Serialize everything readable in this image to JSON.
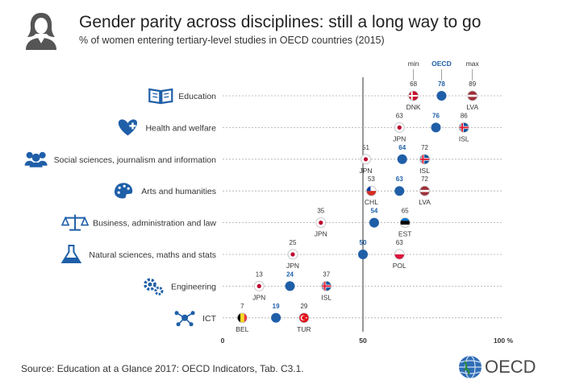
{
  "header": {
    "title": "Gender parity across disciplines: still a long way to go",
    "subtitle": "% of women entering tertiary-level studies in OECD countries (2015)",
    "icon": "woman-avatar-icon"
  },
  "source": "Source: Education at a Glance 2017: OECD Indicators, Tab. C3.1.",
  "logo": {
    "text": "OECD",
    "icon": "globe-icon"
  },
  "colors": {
    "oecd_dot": "#1f5fa8",
    "text": "#333333",
    "axis": "#333333",
    "dotted": "#aaaaaa"
  },
  "chart_data": {
    "type": "scatter",
    "column_headers": {
      "min": "min",
      "oecd": "OECD",
      "max": "max"
    },
    "x_ticks": [
      {
        "value": 0,
        "label": "0"
      },
      {
        "value": 50,
        "label": "50"
      },
      {
        "value": 100,
        "label": "100 %"
      }
    ],
    "xlim": [
      0,
      100
    ],
    "reference_line": 50,
    "categories": [
      {
        "label": "Education",
        "icon": "book-icon",
        "min": 68,
        "min_country": "DNK",
        "oecd": 78,
        "max": 89,
        "max_country": "LVA"
      },
      {
        "label": "Health and welfare",
        "icon": "heart-plus-icon",
        "min": 63,
        "min_country": "JPN",
        "oecd": 76,
        "max": 86,
        "max_country": "ISL"
      },
      {
        "label": "Social sciences, journalism and information",
        "icon": "people-icon",
        "min": 51,
        "min_country": "JPN",
        "oecd": 64,
        "max": 72,
        "max_country": "ISL"
      },
      {
        "label": "Arts and humanities",
        "icon": "palette-icon",
        "min": 53,
        "min_country": "CHL",
        "oecd": 63,
        "max": 72,
        "max_country": "LVA"
      },
      {
        "label": "Business, administration and law",
        "icon": "scales-icon",
        "min": 35,
        "min_country": "JPN",
        "oecd": 54,
        "max": 65,
        "max_country": "EST"
      },
      {
        "label": "Natural sciences, maths and stats",
        "icon": "flask-icon",
        "min": 25,
        "min_country": "JPN",
        "oecd": 50,
        "max": 63,
        "max_country": "POL"
      },
      {
        "label": "Engineering",
        "icon": "gears-icon",
        "min": 13,
        "min_country": "JPN",
        "oecd": 24,
        "max": 37,
        "max_country": "ISL"
      },
      {
        "label": "ICT",
        "icon": "network-icon",
        "min": 7,
        "min_country": "BEL",
        "oecd": 19,
        "max": 29,
        "max_country": "TUR"
      }
    ]
  }
}
